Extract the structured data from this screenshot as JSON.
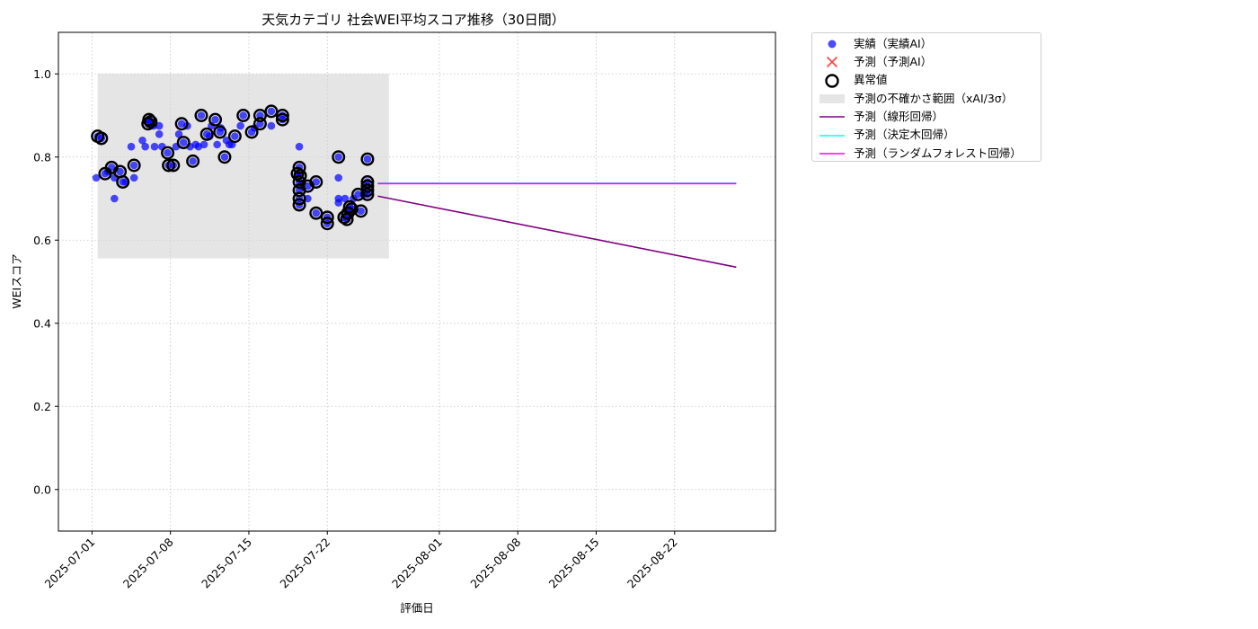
{
  "chart_data": {
    "type": "scatter",
    "title": "天気カテゴリ 社会WEI平均スコア推移（30日間）",
    "xlabel": "評価日",
    "ylabel": "WEIスコア",
    "xlim": [
      "2025-06-28",
      "2025-08-31"
    ],
    "ylim": [
      -0.1,
      1.1
    ],
    "grid": true,
    "legend_position": "outside-right-top",
    "x_ticks": [
      "2025-07-01",
      "2025-07-08",
      "2025-07-15",
      "2025-07-22",
      "2025-08-01",
      "2025-08-08",
      "2025-08-15",
      "2025-08-22"
    ],
    "y_ticks": [
      "0.0",
      "0.2",
      "0.4",
      "0.6",
      "0.8",
      "1.0"
    ],
    "uncertainty_band": {
      "name": "予測の不確かさ範囲（xAI/3σ）",
      "x_start": "2025-07-01T12:00",
      "x_end": "2025-07-27T12:00",
      "y_min": 0.556,
      "y_max": 1.0,
      "color": "#d3d3d3"
    },
    "series": [
      {
        "name": "実績（実績AI）",
        "kind": "scatter",
        "color": "#0000ff",
        "points": [
          [
            "2025-07-01T09:00",
            0.75
          ],
          [
            "2025-07-01T12:00",
            0.85
          ],
          [
            "2025-07-01T20:00",
            0.845
          ],
          [
            "2025-07-02T04:00",
            0.76
          ],
          [
            "2025-07-02T10:00",
            0.765
          ],
          [
            "2025-07-02T18:00",
            0.775
          ],
          [
            "2025-07-03T00:00",
            0.75
          ],
          [
            "2025-07-03T00:00",
            0.7
          ],
          [
            "2025-07-03T12:00",
            0.765
          ],
          [
            "2025-07-03T18:00",
            0.74
          ],
          [
            "2025-07-04T00:00",
            0.74
          ],
          [
            "2025-07-04T12:00",
            0.825
          ],
          [
            "2025-07-04T18:00",
            0.78
          ],
          [
            "2025-07-04T18:00",
            0.75
          ],
          [
            "2025-07-05T12:00",
            0.84
          ],
          [
            "2025-07-05T18:00",
            0.825
          ],
          [
            "2025-07-06T00:00",
            0.88
          ],
          [
            "2025-07-06T02:00",
            0.89
          ],
          [
            "2025-07-06T06:00",
            0.885
          ],
          [
            "2025-07-06T12:00",
            0.875
          ],
          [
            "2025-07-06T14:00",
            0.825
          ],
          [
            "2025-07-07T00:00",
            0.855
          ],
          [
            "2025-07-07T00:00",
            0.875
          ],
          [
            "2025-07-07T06:00",
            0.825
          ],
          [
            "2025-07-07T18:00",
            0.81
          ],
          [
            "2025-07-07T20:00",
            0.78
          ],
          [
            "2025-07-08T06:00",
            0.78
          ],
          [
            "2025-07-08T12:00",
            0.825
          ],
          [
            "2025-07-08T18:00",
            0.855
          ],
          [
            "2025-07-09T00:00",
            0.88
          ],
          [
            "2025-07-09T04:00",
            0.835
          ],
          [
            "2025-07-09T12:00",
            0.875
          ],
          [
            "2025-07-09T18:00",
            0.825
          ],
          [
            "2025-07-10T00:00",
            0.79
          ],
          [
            "2025-07-10T06:00",
            0.83
          ],
          [
            "2025-07-10T12:00",
            0.825
          ],
          [
            "2025-07-10T18:00",
            0.9
          ],
          [
            "2025-07-11T00:00",
            0.83
          ],
          [
            "2025-07-11T06:00",
            0.855
          ],
          [
            "2025-07-11T12:00",
            0.85
          ],
          [
            "2025-07-11T16:00",
            0.875
          ],
          [
            "2025-07-12T00:00",
            0.89
          ],
          [
            "2025-07-12T04:00",
            0.83
          ],
          [
            "2025-07-12T10:00",
            0.86
          ],
          [
            "2025-07-12T12:00",
            0.87
          ],
          [
            "2025-07-12T20:00",
            0.8
          ],
          [
            "2025-07-13T00:00",
            0.84
          ],
          [
            "2025-07-13T06:00",
            0.83
          ],
          [
            "2025-07-13T12:00",
            0.83
          ],
          [
            "2025-07-13T18:00",
            0.85
          ],
          [
            "2025-07-14T06:00",
            0.875
          ],
          [
            "2025-07-14T12:00",
            0.9
          ],
          [
            "2025-07-15T06:00",
            0.86
          ],
          [
            "2025-07-15T12:00",
            0.87
          ],
          [
            "2025-07-16T00:00",
            0.9
          ],
          [
            "2025-07-16T00:00",
            0.88
          ],
          [
            "2025-07-17T00:00",
            0.91
          ],
          [
            "2025-07-17T00:00",
            0.875
          ],
          [
            "2025-07-18T00:00",
            0.9
          ],
          [
            "2025-07-18T00:00",
            0.89
          ],
          [
            "2025-07-19T08:00",
            0.76
          ],
          [
            "2025-07-19T12:00",
            0.825
          ],
          [
            "2025-07-19T12:00",
            0.775
          ],
          [
            "2025-07-19T12:00",
            0.74
          ],
          [
            "2025-07-19T12:00",
            0.72
          ],
          [
            "2025-07-19T12:00",
            0.7
          ],
          [
            "2025-07-19T12:00",
            0.685
          ],
          [
            "2025-07-19T14:00",
            0.755
          ],
          [
            "2025-07-19T16:00",
            0.73
          ],
          [
            "2025-07-20T06:00",
            0.7
          ],
          [
            "2025-07-20T06:00",
            0.73
          ],
          [
            "2025-07-21T00:00",
            0.665
          ],
          [
            "2025-07-21T00:00",
            0.74
          ],
          [
            "2025-07-22T00:00",
            0.655
          ],
          [
            "2025-07-22T00:00",
            0.64
          ],
          [
            "2025-07-23T00:00",
            0.8
          ],
          [
            "2025-07-23T00:00",
            0.75
          ],
          [
            "2025-07-23T00:00",
            0.69
          ],
          [
            "2025-07-23T00:00",
            0.7
          ],
          [
            "2025-07-23T12:00",
            0.655
          ],
          [
            "2025-07-23T14:00",
            0.7
          ],
          [
            "2025-07-23T18:00",
            0.65
          ],
          [
            "2025-07-23T20:00",
            0.665
          ],
          [
            "2025-07-24T00:00",
            0.68
          ],
          [
            "2025-07-24T04:00",
            0.675
          ],
          [
            "2025-07-24T08:00",
            0.7
          ],
          [
            "2025-07-24T18:00",
            0.71
          ],
          [
            "2025-07-25T00:00",
            0.67
          ],
          [
            "2025-07-25T06:00",
            0.71
          ],
          [
            "2025-07-25T12:00",
            0.73
          ],
          [
            "2025-07-25T14:00",
            0.795
          ],
          [
            "2025-07-25T14:00",
            0.74
          ],
          [
            "2025-07-25T14:00",
            0.71
          ],
          [
            "2025-07-25T14:00",
            0.72
          ]
        ]
      },
      {
        "name": "異常値",
        "kind": "outlier-ring",
        "color": "#000000",
        "points": [
          [
            "2025-07-01T12:00",
            0.85
          ],
          [
            "2025-07-01T20:00",
            0.845
          ],
          [
            "2025-07-02T04:00",
            0.76
          ],
          [
            "2025-07-02T18:00",
            0.775
          ],
          [
            "2025-07-03T12:00",
            0.765
          ],
          [
            "2025-07-03T18:00",
            0.74
          ],
          [
            "2025-07-04T18:00",
            0.78
          ],
          [
            "2025-07-06T00:00",
            0.88
          ],
          [
            "2025-07-06T02:00",
            0.89
          ],
          [
            "2025-07-06T06:00",
            0.885
          ],
          [
            "2025-07-07T18:00",
            0.81
          ],
          [
            "2025-07-07T20:00",
            0.78
          ],
          [
            "2025-07-08T06:00",
            0.78
          ],
          [
            "2025-07-09T00:00",
            0.88
          ],
          [
            "2025-07-09T04:00",
            0.835
          ],
          [
            "2025-07-10T00:00",
            0.79
          ],
          [
            "2025-07-10T18:00",
            0.9
          ],
          [
            "2025-07-11T06:00",
            0.855
          ],
          [
            "2025-07-12T00:00",
            0.89
          ],
          [
            "2025-07-12T10:00",
            0.86
          ],
          [
            "2025-07-12T20:00",
            0.8
          ],
          [
            "2025-07-13T18:00",
            0.85
          ],
          [
            "2025-07-14T12:00",
            0.9
          ],
          [
            "2025-07-15T06:00",
            0.86
          ],
          [
            "2025-07-16T00:00",
            0.9
          ],
          [
            "2025-07-16T00:00",
            0.88
          ],
          [
            "2025-07-17T00:00",
            0.91
          ],
          [
            "2025-07-18T00:00",
            0.9
          ],
          [
            "2025-07-18T00:00",
            0.89
          ],
          [
            "2025-07-19T08:00",
            0.76
          ],
          [
            "2025-07-19T12:00",
            0.775
          ],
          [
            "2025-07-19T12:00",
            0.74
          ],
          [
            "2025-07-19T12:00",
            0.72
          ],
          [
            "2025-07-19T12:00",
            0.7
          ],
          [
            "2025-07-19T12:00",
            0.685
          ],
          [
            "2025-07-19T14:00",
            0.755
          ],
          [
            "2025-07-20T06:00",
            0.73
          ],
          [
            "2025-07-21T00:00",
            0.665
          ],
          [
            "2025-07-21T00:00",
            0.74
          ],
          [
            "2025-07-22T00:00",
            0.655
          ],
          [
            "2025-07-22T00:00",
            0.64
          ],
          [
            "2025-07-23T00:00",
            0.8
          ],
          [
            "2025-07-23T12:00",
            0.655
          ],
          [
            "2025-07-23T18:00",
            0.65
          ],
          [
            "2025-07-23T20:00",
            0.665
          ],
          [
            "2025-07-24T00:00",
            0.68
          ],
          [
            "2025-07-24T04:00",
            0.675
          ],
          [
            "2025-07-24T18:00",
            0.71
          ],
          [
            "2025-07-25T00:00",
            0.67
          ],
          [
            "2025-07-25T14:00",
            0.795
          ],
          [
            "2025-07-25T14:00",
            0.74
          ],
          [
            "2025-07-25T14:00",
            0.71
          ],
          [
            "2025-07-25T14:00",
            0.72
          ],
          [
            "2025-07-25T14:00",
            0.73
          ]
        ]
      },
      {
        "name": "予測（予測AI）",
        "kind": "x-marker",
        "color": "#ff0000",
        "points": []
      },
      {
        "name": "予測（線形回帰）",
        "kind": "line",
        "color": "#800080",
        "points": [
          [
            "2025-07-26T12:00",
            0.706
          ],
          [
            "2025-08-27T12:00",
            0.535
          ]
        ]
      },
      {
        "name": "予測（決定木回帰）",
        "kind": "line",
        "color": "#00ffff",
        "points": [
          [
            "2025-07-26T12:00",
            0.737
          ],
          [
            "2025-08-27T12:00",
            0.737
          ]
        ]
      },
      {
        "name": "予測（ランダムフォレスト回帰）",
        "kind": "line",
        "color": "#ff00ff",
        "points": [
          [
            "2025-07-26T12:00",
            0.736
          ],
          [
            "2025-08-27T12:00",
            0.736
          ]
        ]
      }
    ]
  },
  "legend": {
    "items": [
      {
        "label": "実績（実績AI）",
        "icon": "dot",
        "color": "#0000ff"
      },
      {
        "label": "予測（予測AI）",
        "icon": "x",
        "color": "#ff0000"
      },
      {
        "label": "異常値",
        "icon": "ring",
        "color": "#000000"
      },
      {
        "label": "予測の不確かさ範囲（xAI/3σ）",
        "icon": "band",
        "color": "#d3d3d3"
      },
      {
        "label": "予測（線形回帰）",
        "icon": "line",
        "color": "#800080"
      },
      {
        "label": "予測（決定木回帰）",
        "icon": "line",
        "color": "#00ffff"
      },
      {
        "label": "予測（ランダムフォレスト回帰）",
        "icon": "line",
        "color": "#ff00ff"
      }
    ]
  }
}
